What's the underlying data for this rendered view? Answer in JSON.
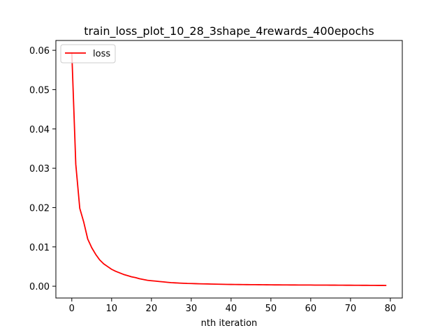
{
  "chart_data": {
    "type": "line",
    "title": "train_loss_plot_10_28_3shape_4rewards_400epochs",
    "xlabel": "nth iteration",
    "ylabel": "",
    "xlim": [
      -4,
      83
    ],
    "ylim": [
      -0.003,
      0.0625
    ],
    "xticks": [
      0,
      10,
      20,
      30,
      40,
      50,
      60,
      70,
      80
    ],
    "yticks": [
      0.0,
      0.01,
      0.02,
      0.03,
      0.04,
      0.05,
      0.06
    ],
    "ytick_labels": [
      "0.00",
      "0.01",
      "0.02",
      "0.03",
      "0.04",
      "0.05",
      "0.06"
    ],
    "grid": false,
    "legend_position": "top-left",
    "series": [
      {
        "name": "loss",
        "color": "#ff0000",
        "x": [
          0,
          1,
          2,
          3,
          4,
          5,
          6,
          7,
          8,
          9,
          10,
          11,
          12,
          13,
          14,
          15,
          16,
          17,
          18,
          19,
          20,
          21,
          22,
          23,
          24,
          25,
          26,
          27,
          28,
          29,
          30,
          31,
          32,
          33,
          34,
          35,
          36,
          37,
          38,
          39,
          40,
          41,
          42,
          43,
          44,
          45,
          46,
          47,
          48,
          49,
          50,
          51,
          52,
          53,
          54,
          55,
          56,
          57,
          58,
          59,
          60,
          61,
          62,
          63,
          64,
          65,
          66,
          67,
          68,
          69,
          70,
          71,
          72,
          73,
          74,
          75,
          76,
          77,
          78,
          79
        ],
        "y": [
          0.0595,
          0.031,
          0.0198,
          0.0163,
          0.012,
          0.0098,
          0.0081,
          0.0067,
          0.0057,
          0.005,
          0.0043,
          0.0038,
          0.0034,
          0.003,
          0.0027,
          0.0024,
          0.0022,
          0.0019,
          0.0017,
          0.0015,
          0.0014,
          0.0013,
          0.0012,
          0.0011,
          0.001,
          0.0009,
          0.00085,
          0.0008,
          0.00075,
          0.0007,
          0.00068,
          0.00065,
          0.00062,
          0.0006,
          0.00058,
          0.00055,
          0.00053,
          0.0005,
          0.00048,
          0.00046,
          0.00045,
          0.00044,
          0.00043,
          0.00042,
          0.00041,
          0.0004,
          0.00039,
          0.00038,
          0.00037,
          0.00036,
          0.00035,
          0.00034,
          0.00034,
          0.00033,
          0.00033,
          0.00032,
          0.00032,
          0.00031,
          0.00031,
          0.0003,
          0.0003,
          0.00029,
          0.00029,
          0.00028,
          0.00028,
          0.00027,
          0.00027,
          0.00026,
          0.00026,
          0.00025,
          0.00025,
          0.00024,
          0.00024,
          0.00023,
          0.00023,
          0.00022,
          0.00022,
          0.00021,
          0.00021,
          0.0002
        ]
      }
    ]
  }
}
